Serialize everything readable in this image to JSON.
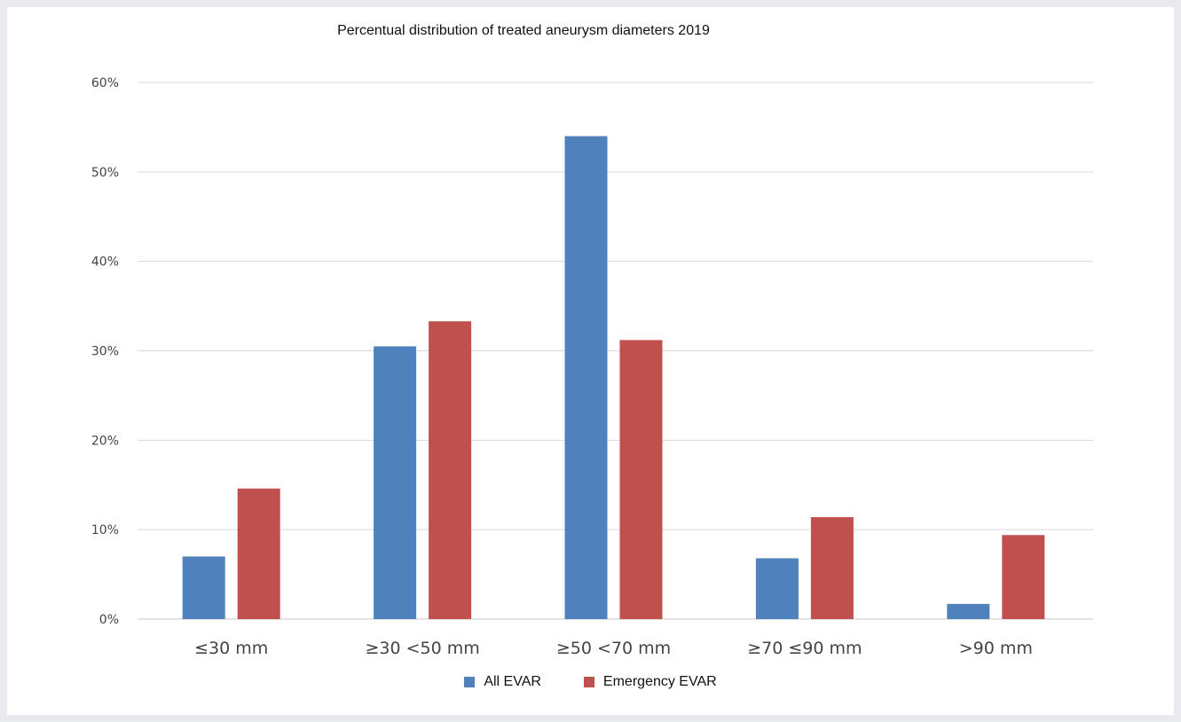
{
  "chart_data": {
    "type": "bar",
    "title": "Percentual distribution of treated aneurysm diameters 2019",
    "categories": [
      "≤30 mm",
      "≥30 <50 mm",
      "≥50 <70 mm",
      "≥70 ≤90 mm",
      ">90 mm"
    ],
    "series": [
      {
        "name": "All EVAR",
        "color": "#4f81bd",
        "values": [
          7.0,
          30.5,
          54.0,
          6.8,
          1.7
        ]
      },
      {
        "name": "Emergency EVAR",
        "color": "#c0504d",
        "values": [
          14.6,
          33.3,
          31.2,
          11.4,
          9.4
        ]
      }
    ],
    "ylim": [
      0,
      60
    ],
    "yticks": [
      "0%",
      "10%",
      "20%",
      "30%",
      "40%",
      "50%",
      "60%"
    ],
    "grid": true,
    "legend_position": "bottom"
  }
}
